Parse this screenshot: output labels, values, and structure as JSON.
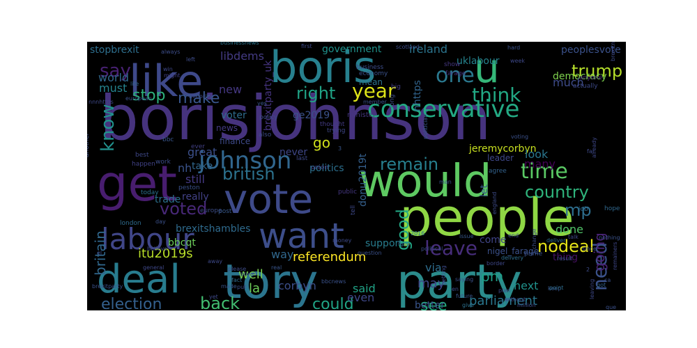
{
  "word_cloud": {
    "words": [
      {
        "text": "borisjohnson",
        "color": "#46337e",
        "weight": 1.0
      },
      {
        "text": "people",
        "color": "#8fd744",
        "weight": 0.9
      },
      {
        "text": "tory",
        "color": "#2b758e",
        "weight": 0.86
      },
      {
        "text": "party",
        "color": "#2b8c8c",
        "weight": 0.84
      },
      {
        "text": "deal",
        "color": "#287c8e",
        "weight": 0.82
      },
      {
        "text": "would",
        "color": "#5ec962",
        "weight": 0.8
      },
      {
        "text": "vote",
        "color": "#3e4a89",
        "weight": 0.8
      },
      {
        "text": "boris",
        "color": "#27808e",
        "weight": 0.78
      },
      {
        "text": "like",
        "color": "#3e4989",
        "weight": 0.76
      },
      {
        "text": "get",
        "color": "#481d6f",
        "weight": 0.75
      },
      {
        "text": "want",
        "color": "#3d4e8a",
        "weight": 0.7
      },
      {
        "text": "u",
        "color": "#35b779",
        "weight": 0.68
      },
      {
        "text": "labour",
        "color": "#404688",
        "weight": 0.6
      },
      {
        "text": "conservative",
        "color": "#23a983",
        "weight": 0.56
      },
      {
        "text": "johnson",
        "color": "#31668e",
        "weight": 0.5
      },
      {
        "text": "one",
        "color": "#2a788e",
        "weight": 0.44
      },
      {
        "text": "time",
        "color": "#5ac864",
        "weight": 0.42
      },
      {
        "text": "think",
        "color": "#22a884",
        "weight": 0.42
      },
      {
        "text": "year",
        "color": "#dde318",
        "weight": 0.42
      },
      {
        "text": "country",
        "color": "#2fb47c",
        "weight": 0.42
      },
      {
        "text": "leave",
        "color": "#472d7b",
        "weight": 0.42
      },
      {
        "text": "need",
        "color": "#3b528b",
        "weight": 0.42
      },
      {
        "text": "remain",
        "color": "#277f8e",
        "weight": 0.4
      },
      {
        "text": "say",
        "color": "#482173",
        "weight": 0.4
      },
      {
        "text": "know",
        "color": "#21918c",
        "weight": 0.4
      },
      {
        "text": "trump",
        "color": "#b5de2b",
        "weight": 0.38
      },
      {
        "text": "back",
        "color": "#42be71",
        "weight": 0.38
      },
      {
        "text": "nodeal",
        "color": "#e5e419",
        "weight": 0.38
      },
      {
        "text": "voted",
        "color": "#482878",
        "weight": 0.38
      },
      {
        "text": "british",
        "color": "#2c728e",
        "weight": 0.36
      },
      {
        "text": "right",
        "color": "#20a386",
        "weight": 0.36
      },
      {
        "text": "make",
        "color": "#39568c",
        "weight": 0.34
      },
      {
        "text": "stop",
        "color": "#2db27d",
        "weight": 0.34
      },
      {
        "text": "could",
        "color": "#20a486",
        "weight": 0.34
      },
      {
        "text": "election",
        "color": "#34608d",
        "weight": 0.34
      },
      {
        "text": "mp",
        "color": "#2e6e8e",
        "weight": 0.34
      },
      {
        "text": "good",
        "color": "#22a785",
        "weight": 0.3
      },
      {
        "text": "see",
        "color": "#26ad81",
        "weight": 0.3
      },
      {
        "text": "referendum",
        "color": "#fde725",
        "weight": 0.3
      },
      {
        "text": "britain",
        "color": "#31688e",
        "weight": 0.3
      },
      {
        "text": "parliament",
        "color": "#2a778e",
        "weight": 0.28
      },
      {
        "text": "go",
        "color": "#d2e21b",
        "weight": 0.28
      },
      {
        "text": "going",
        "color": "#482475",
        "weight": 0.26
      },
      {
        "text": "itu2019s",
        "color": "#b8de29",
        "weight": 0.26
      },
      {
        "text": "well",
        "color": "#7ad151",
        "weight": 0.26
      },
      {
        "text": "la",
        "color": "#6ece58",
        "weight": 0.26
      },
      {
        "text": "come",
        "color": "#404588",
        "weight": 0.24
      },
      {
        "text": "may",
        "color": "#3f4788",
        "weight": 0.24
      },
      {
        "text": "pm",
        "color": "#1fa088",
        "weight": 0.24
      },
      {
        "text": "new",
        "color": "#453882",
        "weight": 0.24
      },
      {
        "text": "many",
        "color": "#440154",
        "weight": 0.24
      },
      {
        "text": "politics",
        "color": "#2d708e",
        "weight": 0.24
      },
      {
        "text": "jeremycorbyn",
        "color": "#c8e020",
        "weight": 0.22
      },
      {
        "text": "libdems",
        "color": "#443b84",
        "weight": 0.22
      },
      {
        "text": "brexitparty_uk",
        "color": "#463480",
        "weight": 0.22
      },
      {
        "text": "even",
        "color": "#3f4889",
        "weight": 0.22
      },
      {
        "text": "via",
        "color": "#2e6d8e",
        "weight": 0.22
      },
      {
        "text": "look",
        "color": "#2a768e",
        "weight": 0.22
      },
      {
        "text": "democracy",
        "color": "#7fd34e",
        "weight": 0.22
      },
      {
        "text": "peoplesvote",
        "color": "#3b528b",
        "weight": 0.2
      },
      {
        "text": "government",
        "color": "#20928c",
        "weight": 0.2
      },
      {
        "text": "ireland",
        "color": "#2b748e",
        "weight": 0.2
      },
      {
        "text": "great",
        "color": "#3c508b",
        "weight": 0.2
      },
      {
        "text": "take",
        "color": "#31688e",
        "weight": 0.2
      },
      {
        "text": "really",
        "color": "#424186",
        "weight": 0.2
      },
      {
        "text": "still",
        "color": "#443983",
        "weight": 0.2
      },
      {
        "text": "corbyn",
        "color": "#3c4f8a",
        "weight": 0.2
      },
      {
        "text": "said",
        "color": "#20a386",
        "weight": 0.2
      },
      {
        "text": "next",
        "color": "#20928c",
        "weight": 0.2
      },
      {
        "text": "done",
        "color": "#52c569",
        "weight": 0.2
      },
      {
        "text": "thing",
        "color": "#471164",
        "weight": 0.2
      },
      {
        "text": "much",
        "color": "#3e4c8a",
        "weight": 0.18
      },
      {
        "text": "world",
        "color": "#31678e",
        "weight": 0.18
      },
      {
        "text": "must",
        "color": "#25838e",
        "weight": 0.18
      },
      {
        "text": "uklabour",
        "color": "#25848e",
        "weight": 0.18
      },
      {
        "text": "stopbrexit",
        "color": "#2e6f8e",
        "weight": 0.18
      },
      {
        "text": "support",
        "color": "#287d8e",
        "weight": 0.18
      },
      {
        "text": "bbcqt",
        "color": "#6ccd5a",
        "weight": 0.18
      },
      {
        "text": "brexitshambles",
        "color": "#2f6b8e",
        "weight": 0.18
      },
      {
        "text": "trade",
        "color": "#2c718e",
        "weight": 0.18
      },
      {
        "text": "way",
        "color": "#31688e",
        "weight": 0.18
      },
      {
        "text": "nh",
        "color": "#3a538b",
        "weight": 0.18
      },
      {
        "text": "voter",
        "color": "#2f6c8e",
        "weight": 0.16
      },
      {
        "text": "ge2019",
        "color": "#3b528b",
        "weight": 0.16
      },
      {
        "text": "donu2019t",
        "color": "#35608d",
        "weight": 0.16
      },
      {
        "text": "mean",
        "color": "#2c738e",
        "weight": 0.14
      },
      {
        "text": "never",
        "color": "#3f4788",
        "weight": 0.14
      },
      {
        "text": "better",
        "color": "#39558c",
        "weight": 0.14
      },
      {
        "text": "nigel_farage",
        "color": "#3b518b",
        "weight": 0.12
      },
      {
        "text": "nhttps",
        "color": "#32658e",
        "weight": 0.12
      },
      {
        "text": "leader",
        "color": "#3f4889",
        "weight": 0.12
      },
      {
        "text": "let",
        "color": "#38598c",
        "weight": 0.12
      },
      {
        "text": "news",
        "color": "#443a83",
        "weight": 0.12
      },
      {
        "text": "finance",
        "color": "#3e4a89",
        "weight": 0.12
      },
      {
        "text": "minister",
        "color": "#453781",
        "weight": 0.11
      },
      {
        "text": "business",
        "color": "#3d4d8a",
        "weight": 0.11
      },
      {
        "text": "economy",
        "color": "#3b528b",
        "weight": 0.1
      },
      {
        "text": "farage",
        "color": "#46327e",
        "weight": 0.1
      },
      {
        "text": "show",
        "color": "#453882",
        "weight": 0.1
      },
      {
        "text": "actually",
        "color": "#3e4a89",
        "weight": 0.1
      },
      {
        "text": "anyone",
        "color": "#472c7a",
        "weight": 0.1
      },
      {
        "text": "ever",
        "color": "#424086",
        "weight": 0.1
      },
      {
        "text": "work",
        "color": "#3d4d8a",
        "weight": 0.1
      },
      {
        "text": "peston",
        "color": "#3b518b",
        "weight": 0.1
      },
      {
        "text": "europe",
        "color": "#3d4e8a",
        "weight": 0.1
      },
      {
        "text": "post",
        "color": "#38598c",
        "weight": 0.1
      },
      {
        "text": "today",
        "color": "#2c718e",
        "weight": 0.1
      },
      {
        "text": "london",
        "color": "#2f6b8e",
        "weight": 0.1
      },
      {
        "text": "public",
        "color": "#453781",
        "weight": 0.1
      },
      {
        "text": "tell",
        "color": "#3e4989",
        "weight": 0.1
      },
      {
        "text": "agree",
        "color": "#33628d",
        "weight": 0.1
      },
      {
        "text": "bbc",
        "color": "#39568c",
        "weight": 0.1
      },
      {
        "text": "policy",
        "color": "#3d4d8a",
        "weight": 0.1
      },
      {
        "text": "big",
        "color": "#433e85",
        "weight": 0.1
      },
      {
        "text": "long",
        "color": "#3d4e8a",
        "weight": 0.1
      },
      {
        "text": "thought",
        "color": "#443b84",
        "weight": 0.1
      },
      {
        "text": "trying",
        "color": "#3f4788",
        "weight": 0.1
      },
      {
        "text": "union",
        "color": "#433d84",
        "weight": 0.1
      },
      {
        "text": "last",
        "color": "#3e4989",
        "weight": 0.1
      },
      {
        "text": "also",
        "color": "#3e4c8a",
        "weight": 0.1
      },
      {
        "text": "another",
        "color": "#3b518b",
        "weight": 0.1
      },
      {
        "text": "best",
        "color": "#3f4889",
        "weight": 0.1
      },
      {
        "text": "happen",
        "color": "#414287",
        "weight": 0.1
      },
      {
        "text": "first",
        "color": "#3e4a89",
        "weight": 0.09
      },
      {
        "text": "scotland",
        "color": "#3d4d8a",
        "weight": 0.09
      },
      {
        "text": "hard",
        "color": "#3b528b",
        "weight": 0.09
      },
      {
        "text": "week",
        "color": "#3e4989",
        "weight": 0.09
      },
      {
        "text": "member",
        "color": "#3b518b",
        "weight": 0.09
      },
      {
        "text": "left",
        "color": "#3e4c8a",
        "weight": 0.09
      },
      {
        "text": "always",
        "color": "#3d4e8a",
        "weight": 0.09
      },
      {
        "text": "win",
        "color": "#3f4889",
        "weight": 0.09
      },
      {
        "text": "might",
        "color": "#424086",
        "weight": 0.09
      },
      {
        "text": "life",
        "color": "#33638d",
        "weight": 0.09
      },
      {
        "text": "european",
        "color": "#3b518b",
        "weight": 0.09
      },
      {
        "text": "majority",
        "color": "#3d4d8a",
        "weight": 0.09
      },
      {
        "text": "businessnews",
        "color": "#2b748e",
        "weight": 0.09
      },
      {
        "text": "brexitn",
        "color": "#3e4a89",
        "weight": 0.09
      },
      {
        "text": "yes",
        "color": "#39568c",
        "weight": 0.09
      },
      {
        "text": "politician",
        "color": "#38598c",
        "weight": 0.09
      },
      {
        "text": "voting",
        "color": "#3b518b",
        "weight": 0.09
      },
      {
        "text": "already",
        "color": "#3f4889",
        "weight": 0.09
      },
      {
        "text": "far",
        "color": "#3e4989",
        "weight": 0.09
      },
      {
        "text": "man",
        "color": "#3b518b",
        "weight": 0.09
      },
      {
        "text": "hope",
        "color": "#31688e",
        "weight": 0.09
      },
      {
        "text": "job",
        "color": "#2f6b8e",
        "weight": 0.09
      },
      {
        "text": "england",
        "color": "#3e4c8a",
        "weight": 0.09
      },
      {
        "text": "deliver",
        "color": "#2e6e8e",
        "weight": 0.09
      },
      {
        "text": "result",
        "color": "#39558c",
        "weight": 0.09
      },
      {
        "text": "since",
        "color": "#3d4e8a",
        "weight": 0.09
      },
      {
        "text": "talk",
        "color": "#3e4989",
        "weight": 0.09
      },
      {
        "text": "nothing",
        "color": "#3b528b",
        "weight": 0.09
      },
      {
        "text": "remainers",
        "color": "#3f4788",
        "weight": 0.09
      },
      {
        "text": "help",
        "color": "#2f6b8e",
        "weight": 0.09
      },
      {
        "text": "2016",
        "color": "#2c718e",
        "weight": 0.09
      },
      {
        "text": "political",
        "color": "#3d4d8a",
        "weight": 0.09
      },
      {
        "text": "question",
        "color": "#3b518b",
        "weight": 0.09
      },
      {
        "text": "money",
        "color": "#3e4a89",
        "weight": 0.09
      },
      {
        "text": "prime",
        "color": "#3b528b",
        "weight": 0.09
      },
      {
        "text": "end",
        "color": "#3e4989",
        "weight": 0.09
      },
      {
        "text": "issue",
        "color": "#38598c",
        "weight": 0.09
      },
      {
        "text": "change",
        "color": "#3d4e8a",
        "weight": 0.09
      },
      {
        "text": "keep",
        "color": "#39568c",
        "weight": 0.09
      },
      {
        "text": "point",
        "color": "#2e6e8e",
        "weight": 0.09
      },
      {
        "text": "got",
        "color": "#33638d",
        "weight": 0.09
      },
      {
        "text": "leaving",
        "color": "#3e4989",
        "weight": 0.09
      },
      {
        "text": "que",
        "color": "#3b518b",
        "weight": 0.09
      },
      {
        "text": "million",
        "color": "#3d4d8a",
        "weight": 0.09
      },
      {
        "text": "without",
        "color": "#3f4889",
        "weight": 0.09
      },
      {
        "text": "plan",
        "color": "#3e4989",
        "weight": 0.09
      },
      {
        "text": "future",
        "color": "#39568c",
        "weight": 0.09
      },
      {
        "text": "give",
        "color": "#2c718e",
        "weight": 0.09
      },
      {
        "text": "saying",
        "color": "#3b518b",
        "weight": 0.09
      },
      {
        "text": "getting",
        "color": "#3e4c8a",
        "weight": 0.09
      },
      {
        "text": "en",
        "color": "#3d4e8a",
        "weight": 0.09
      },
      {
        "text": "bbcnews",
        "color": "#3b528b",
        "weight": 0.09
      },
      {
        "text": "border",
        "color": "#3f4889",
        "weight": 0.09
      },
      {
        "text": "yet",
        "color": "#3e4989",
        "weight": 0.09
      },
      {
        "text": "made",
        "color": "#39568c",
        "weight": 0.09
      },
      {
        "text": "fact",
        "color": "#2f6b8e",
        "weight": 0.09
      },
      {
        "text": "power",
        "color": "#3b518b",
        "weight": 0.09
      },
      {
        "text": "please",
        "color": "#3e4c8a",
        "weight": 0.09
      },
      {
        "text": "put",
        "color": "#3d4e8a",
        "weight": 0.09
      },
      {
        "text": "away",
        "color": "#3e4989",
        "weight": 0.09
      },
      {
        "text": "real",
        "color": "#39568c",
        "weight": 0.09
      },
      {
        "text": "general",
        "color": "#3f4889",
        "weight": 0.09
      },
      {
        "text": "believe",
        "color": "#3e4a89",
        "weight": 0.09
      },
      {
        "text": "day",
        "color": "#3b518b",
        "weight": 0.09
      },
      {
        "text": "el",
        "color": "#3d4e8a",
        "weight": 0.09
      },
      {
        "text": "brexitparty",
        "color": "#3b528b",
        "weight": 0.09
      },
      {
        "text": "nnnhttps",
        "color": "#3e4989",
        "weight": 0.09
      },
      {
        "text": "delivery",
        "color": "#2e6e8e",
        "weight": 0.09
      },
      {
        "text": "ca",
        "color": "#3b518b",
        "weight": 0.09
      },
      {
        "text": "3",
        "color": "#39568c",
        "weight": 0.09
      },
      {
        "text": "2",
        "color": "#3e4c8a",
        "weight": 0.09
      }
    ]
  }
}
